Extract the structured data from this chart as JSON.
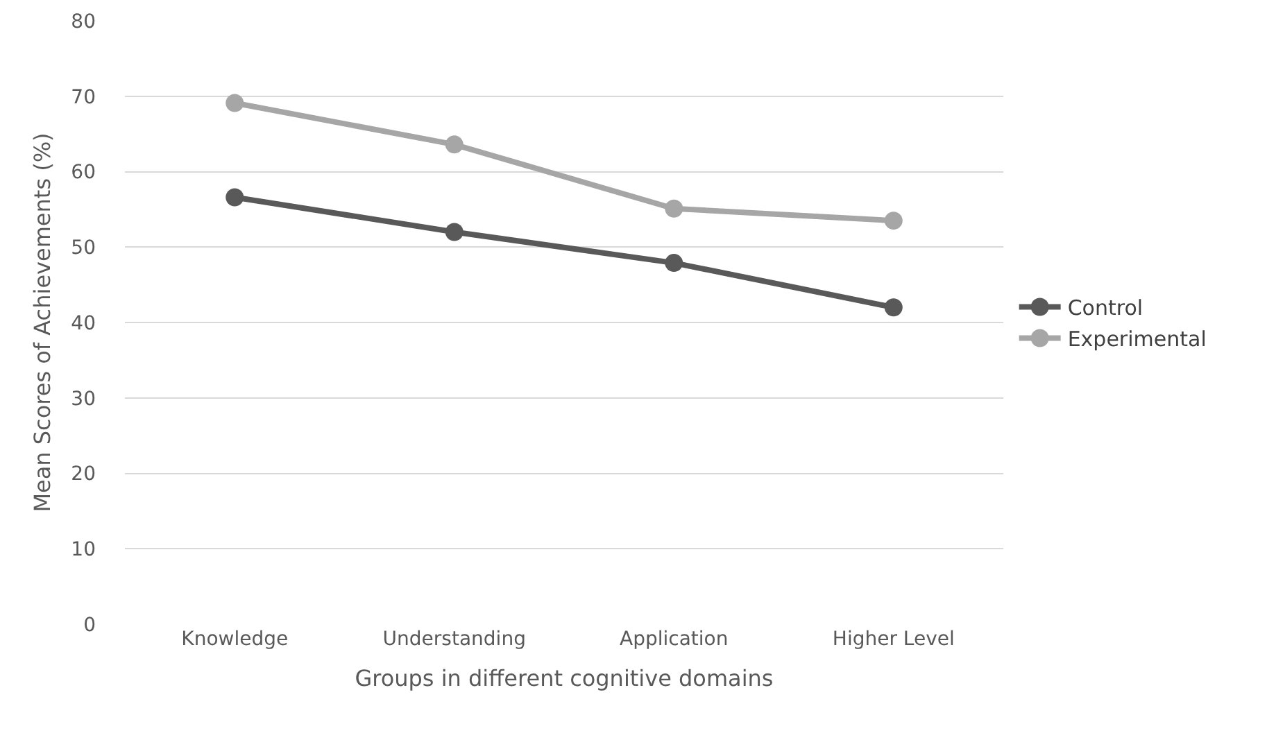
{
  "chart_data": {
    "type": "line",
    "xlabel": "Groups in different cognitive domains",
    "ylabel": "Mean Scores of Achievements (%)",
    "categories": [
      "Knowledge",
      "Understanding",
      "Application",
      "Higher Level"
    ],
    "series": [
      {
        "name": "Control",
        "color": "#595959",
        "values": [
          56.6,
          52.0,
          47.9,
          42.0
        ]
      },
      {
        "name": "Experimental",
        "color": "#a6a6a6",
        "values": [
          69.1,
          63.6,
          55.1,
          53.5
        ]
      }
    ],
    "ylim": [
      0,
      80
    ],
    "yticks": [
      0,
      10,
      20,
      30,
      40,
      50,
      60,
      70,
      80
    ],
    "grid": "y",
    "legend": "right",
    "marker": "circle",
    "line_style": "solid"
  }
}
